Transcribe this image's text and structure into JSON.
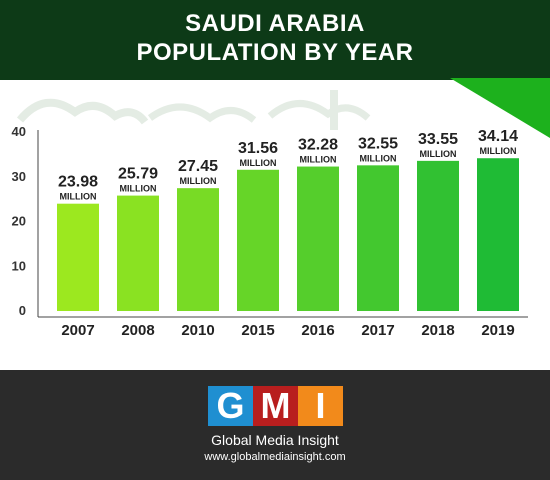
{
  "header": {
    "title_line1": "SAUDI ARABIA",
    "title_line2": "POPULATION BY YEAR"
  },
  "chart_data": {
    "type": "bar",
    "title": "SAUDI ARABIA POPULATION BY YEAR",
    "categories": [
      "2007",
      "2008",
      "2010",
      "2015",
      "2016",
      "2017",
      "2018",
      "2019"
    ],
    "values": [
      23.98,
      25.79,
      27.45,
      31.56,
      32.28,
      32.55,
      33.55,
      34.14
    ],
    "data_labels": [
      "23.98",
      "25.79",
      "27.45",
      "31.56",
      "32.28",
      "32.55",
      "33.55",
      "34.14"
    ],
    "unit_label": "MILLION",
    "yticks": [
      0,
      10,
      20,
      30,
      40
    ],
    "ylim": [
      0,
      40
    ],
    "grid": false,
    "colors": {
      "bar_start": "#9ce81f",
      "bar_end": "#1fbb35"
    }
  },
  "footer": {
    "logo_letters": [
      "G",
      "M",
      "I"
    ],
    "brand_name": "Global Media Insight",
    "website": "www.globalmediainsight.com",
    "colors": {
      "g": "#1f8fd1",
      "m": "#b81e1e",
      "i": "#f28a1b",
      "background": "#2b2b2b"
    }
  }
}
